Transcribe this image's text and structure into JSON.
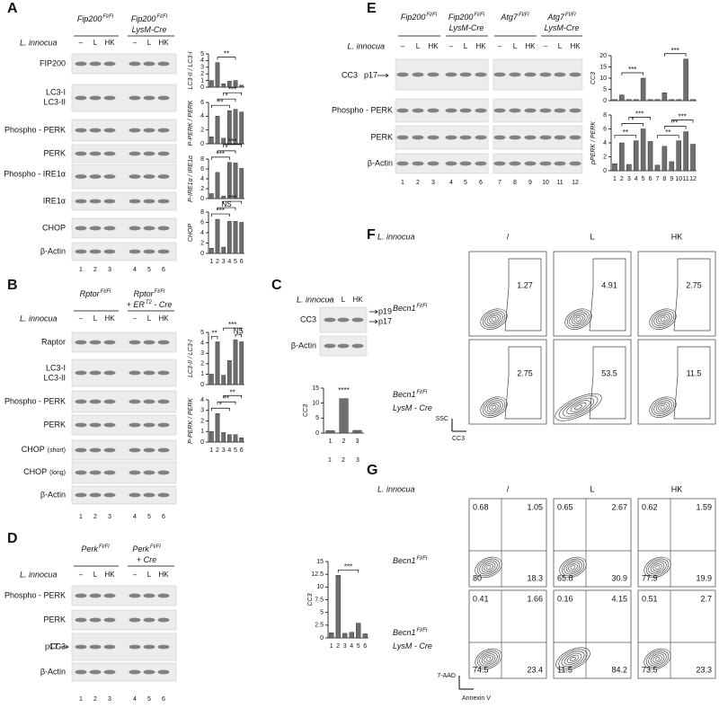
{
  "A": {
    "label": "A",
    "groups": [
      {
        "line1": [
          "Fip200",
          "Fl/Fl"
        ]
      },
      {
        "line1": [
          "Fip200",
          "Fl/Fl"
        ],
        "line2": [
          "LysM-Cre"
        ]
      }
    ],
    "treatment": "L. innocua",
    "treatments": [
      "–",
      "L",
      "HK",
      "–",
      "L",
      "HK"
    ],
    "rows": [
      "FIP200",
      "LC3-I",
      "LC3-II",
      "Phospho - PERK",
      "PERK",
      "Phospho - IRE1α",
      "IRE1α",
      "CHOP",
      "β-Actin"
    ],
    "lanes": [
      "1",
      "2",
      "3",
      "4",
      "5",
      "6"
    ],
    "charts": [
      {
        "type": "bar",
        "ylabel": "LC3-II / LC3-I",
        "values": [
          1,
          3.7,
          0.5,
          0.9,
          1,
          0.3
        ],
        "ylim": [
          0,
          5
        ],
        "yticks": [
          0,
          1,
          2,
          3,
          4,
          5
        ],
        "significance": [
          {
            "text": "**",
            "between": [
              "2",
              "5"
            ]
          }
        ]
      },
      {
        "type": "bar",
        "ylabel": "P-PERK / PERK",
        "values": [
          1,
          4,
          0.8,
          4.8,
          5,
          4.6
        ],
        "ylim": [
          0,
          6
        ],
        "yticks": [
          0,
          2,
          4,
          6
        ],
        "significance": [
          {
            "text": "**",
            "between": [
              "1",
              "4"
            ]
          },
          {
            "text": "*",
            "between": [
              "2",
              "5"
            ]
          },
          {
            "text": "***",
            "between": [
              "3",
              "6"
            ]
          }
        ]
      },
      {
        "type": "bar",
        "ylabel": "P-IRE1α / IRE1α",
        "values": [
          1,
          5.3,
          0.5,
          7.3,
          7.2,
          6.1
        ],
        "ylim": [
          0,
          8
        ],
        "yticks": [
          0,
          2,
          4,
          6,
          8
        ],
        "significance": [
          {
            "text": "***",
            "between": [
              "1",
              "4"
            ]
          },
          {
            "text": "*",
            "between": [
              "2",
              "5"
            ]
          },
          {
            "text": "***",
            "between": [
              "3",
              "6"
            ]
          }
        ]
      },
      {
        "type": "bar",
        "ylabel": "CHOP",
        "categories": [
          "1",
          "2",
          "3",
          "4",
          "5",
          "6"
        ],
        "values": [
          1,
          6.6,
          1.2,
          6.2,
          6.2,
          6
        ],
        "ylim": [
          0,
          8
        ],
        "yticks": [
          0,
          2,
          4,
          6,
          8
        ],
        "significance": [
          {
            "text": "***",
            "between": [
              "1",
              "4"
            ]
          },
          {
            "text": "NS",
            "between": [
              "2",
              "5"
            ]
          },
          {
            "text": "***",
            "between": [
              "3",
              "6"
            ]
          }
        ]
      }
    ]
  },
  "B": {
    "label": "B",
    "groups": [
      {
        "line1": [
          "Rptor",
          "Fl/Fl"
        ]
      },
      {
        "line1": [
          "Rptor",
          "Fl/Fl"
        ],
        "line2": [
          "+ ER",
          "T2",
          " - Cre"
        ]
      }
    ],
    "treatment": "L. innocua",
    "treatments": [
      "–",
      "L",
      "HK",
      "–",
      "L",
      "HK"
    ],
    "rows": [
      "Raptor",
      "LC3-I",
      "LC3-II",
      "Phospho - PERK",
      "PERK",
      [
        "CHOP",
        "(short)"
      ],
      [
        "CHOP",
        "(long)"
      ],
      "β-Actin"
    ],
    "lanes": [
      "1",
      "2",
      "3",
      "4",
      "5",
      "6"
    ],
    "charts": [
      {
        "type": "bar",
        "ylabel": "LC3-II / LC3-I",
        "values": [
          1,
          4.1,
          0.9,
          2.3,
          4.3,
          4.1
        ],
        "ylim": [
          0,
          5
        ],
        "yticks": [
          0,
          1,
          2,
          3,
          4,
          5
        ],
        "significance": [
          {
            "text": "**",
            "between": [
              "1",
              "2"
            ]
          },
          {
            "text": "NS",
            "between": [
              "5",
              "6"
            ]
          },
          {
            "text": "***",
            "between": [
              "3",
              "6"
            ]
          }
        ]
      },
      {
        "type": "bar",
        "ylabel": "P-PERK / PERK",
        "categories": [
          "1",
          "2",
          "3",
          "4",
          "5",
          "6"
        ],
        "values": [
          1,
          2.7,
          0.9,
          0.7,
          0.7,
          0.4
        ],
        "ylim": [
          0,
          4
        ],
        "yticks": [
          0,
          1,
          2,
          3,
          4
        ],
        "significance": [
          {
            "text": "*",
            "between": [
              "1",
              "4"
            ]
          },
          {
            "text": "**",
            "between": [
              "2",
              "5"
            ]
          },
          {
            "text": "**",
            "between": [
              "3",
              "6"
            ]
          }
        ]
      }
    ]
  },
  "C": {
    "label": "C",
    "treatment": "L. innocua",
    "treatments": [
      "–",
      "L",
      "HK"
    ],
    "rows": [
      "CC3",
      "β-Actin"
    ],
    "bands": [
      "p19",
      "p17"
    ],
    "lanes": [
      "1",
      "2",
      "3"
    ],
    "charts": [
      {
        "type": "bar",
        "ylabel": "CC3",
        "categories": [
          "1",
          "2",
          "3"
        ],
        "values": [
          0.8,
          11.5,
          0.9
        ],
        "ylim": [
          0,
          15
        ],
        "yticks": [
          0,
          5,
          10,
          15
        ],
        "significance": [
          {
            "text": "****",
            "between": [
              "2",
              "2"
            ]
          }
        ]
      }
    ]
  },
  "D": {
    "label": "D",
    "groups": [
      {
        "line1": [
          "Perk",
          "Fl/Fl"
        ]
      },
      {
        "line1": [
          "Perk",
          "Fl/Fl"
        ],
        "line2": [
          "+ Cre"
        ]
      }
    ],
    "treatment": "L. innocua",
    "treatments": [
      "–",
      "L",
      "HK",
      "–",
      "L",
      "HK"
    ],
    "rows": [
      "Phospho - PERK",
      "PERK",
      "CC3",
      "β-Actin"
    ],
    "bands": [
      "p17"
    ],
    "lanes": [
      "1",
      "2",
      "3",
      "4",
      "5",
      "6"
    ],
    "charts": [
      {
        "type": "bar",
        "ylabel": "CC3",
        "categories": [
          "1",
          "2",
          "3",
          "4",
          "5",
          "6"
        ],
        "values": [
          1,
          12.3,
          0.9,
          1.1,
          2.9,
          0.8
        ],
        "ylim": [
          0,
          15
        ],
        "yticks": [
          0,
          2.5,
          5,
          7.5,
          10,
          12.5,
          15
        ],
        "significance": [
          {
            "text": "***",
            "between": [
              "2",
              "5"
            ]
          }
        ]
      }
    ]
  },
  "E": {
    "label": "E",
    "groups": [
      {
        "line1": [
          "Fip200",
          "Fl/Fl"
        ]
      },
      {
        "line1": [
          "Fip200",
          "Fl/Fl"
        ],
        "line2": [
          "LysM-Cre"
        ]
      },
      {
        "line1": [
          "Atg7",
          "Fl/Fl"
        ]
      },
      {
        "line1": [
          "Atg7",
          "Fl/Fl"
        ],
        "line2": [
          "LysM-Cre"
        ]
      }
    ],
    "treatment": "L. innocua",
    "treatments": [
      "–",
      "L",
      "HK",
      "–",
      "L",
      "HK",
      "–",
      "L",
      "HK",
      "–",
      "L",
      "HK"
    ],
    "rows": [
      "CC3",
      "Phospho - PERK",
      "PERK",
      "β-Actin"
    ],
    "bands": [
      "p17"
    ],
    "lanes": [
      "1",
      "2",
      "3",
      "4",
      "5",
      "6",
      "7",
      "8",
      "9",
      "10",
      "11",
      "12"
    ],
    "charts": [
      {
        "type": "bar",
        "ylabel": "CC3",
        "values": [
          0.5,
          2.5,
          0.5,
          0.5,
          10,
          0.5,
          0.5,
          3.5,
          0.5,
          0.5,
          18.5,
          0.5
        ],
        "ylim": [
          0,
          20
        ],
        "yticks": [
          0,
          5,
          10,
          15,
          20
        ],
        "significance": [
          {
            "text": "***",
            "between": [
              "2",
              "5"
            ]
          },
          {
            "text": "***",
            "between": [
              "8",
              "11"
            ]
          }
        ]
      },
      {
        "type": "bar",
        "ylabel": "pPERK / PERK",
        "categories": [
          "1",
          "2",
          "3",
          "4",
          "5",
          "6",
          "7",
          "8",
          "9",
          "10",
          "11",
          "12"
        ],
        "values": [
          1,
          4,
          0.9,
          4.3,
          6,
          4.2,
          0.8,
          3.5,
          1.3,
          4.3,
          5.6,
          3.8
        ],
        "ylim": [
          0,
          8
        ],
        "yticks": [
          0,
          2,
          4,
          6,
          8
        ],
        "significance": [
          {
            "text": "**",
            "between": [
              "1",
              "4"
            ]
          },
          {
            "text": "*",
            "between": [
              "2",
              "5"
            ]
          },
          {
            "text": "***",
            "between": [
              "3",
              "6"
            ]
          },
          {
            "text": "**",
            "between": [
              "7",
              "10"
            ]
          },
          {
            "text": "**",
            "between": [
              "8",
              "11"
            ]
          },
          {
            "text": "***",
            "between": [
              "9",
              "12"
            ]
          }
        ]
      }
    ]
  },
  "F": {
    "label": "F",
    "treatment": "L. innocua",
    "columns": [
      "/",
      "L",
      "HK"
    ],
    "groups": [
      {
        "line1": [
          "Becn1",
          "Fl/Fl"
        ]
      },
      {
        "line1": [
          "Becn1",
          "Fl/Fl"
        ],
        "line2": [
          "LysM - Cre"
        ]
      }
    ],
    "gates": [
      [
        1.27,
        4.91,
        2.75
      ],
      [
        2.75,
        53.5,
        11.5
      ]
    ],
    "yaxis": "SSC",
    "xaxis": "CC3"
  },
  "G": {
    "label": "G",
    "treatment": "L. innocua",
    "columns": [
      "/",
      "L",
      "HK"
    ],
    "groups": [
      {
        "line1": [
          "Becn1",
          "Fl/Fl"
        ]
      },
      {
        "line1": [
          "Becn1",
          "Fl/Fl"
        ],
        "line2": [
          "LysM - Cre"
        ]
      }
    ],
    "quadrants": [
      [
        [
          0.68,
          1.05,
          80,
          18.3
        ],
        [
          0.65,
          2.67,
          65.8,
          30.9
        ],
        [
          0.62,
          1.59,
          77.9,
          19.9
        ]
      ],
      [
        [
          0.41,
          1.66,
          74.5,
          23.4
        ],
        [
          0.16,
          4.15,
          11.5,
          84.2
        ],
        [
          0.51,
          2.7,
          73.5,
          23.3
        ]
      ]
    ],
    "yaxis": "7-AAD",
    "xaxis": "Annexin V"
  }
}
